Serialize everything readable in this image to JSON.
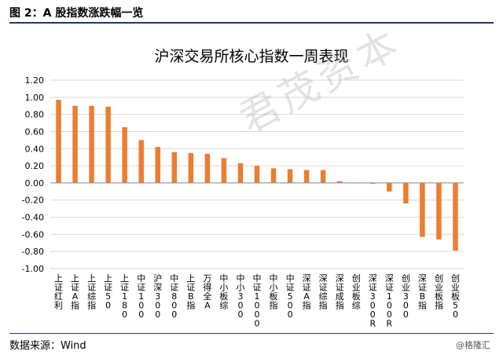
{
  "figure_header": "图 2：A 股指数涨跌幅一览",
  "source_note": "数据来源：Wind",
  "credit": "@格隆汇",
  "watermark": "君茂资本",
  "colors": {
    "bar": "#ed7d31",
    "grid": "#d9d9d9",
    "axis": "#8c8c8c",
    "rule": "#1f3864"
  },
  "chart_data": {
    "type": "bar",
    "title": "沪深交易所核心指数一周表现",
    "categories": [
      "上证红利",
      "上证A指",
      "上证综指",
      "上证50",
      "上证180",
      "中证100",
      "沪深300",
      "中证800",
      "上证B指",
      "万得全A",
      "中小板综",
      "中小300",
      "中证1000",
      "中小板指",
      "中证500",
      "深证A指",
      "深证综指",
      "深证成指",
      "创业板综",
      "深证300R",
      "深证100R",
      "创业300",
      "深证B指",
      "创业板指",
      "创业板50"
    ],
    "values": [
      0.97,
      0.9,
      0.9,
      0.89,
      0.65,
      0.5,
      0.42,
      0.36,
      0.35,
      0.34,
      0.29,
      0.23,
      0.2,
      0.17,
      0.16,
      0.15,
      0.15,
      0.02,
      0.0,
      -0.01,
      -0.1,
      -0.24,
      -0.63,
      -0.66,
      -0.79
    ],
    "ylim": [
      -1.0,
      1.2
    ],
    "yticks": [
      "1.20",
      "1.00",
      "0.80",
      "0.60",
      "0.40",
      "0.20",
      "0.00",
      "-0.20",
      "-0.40",
      "-0.60",
      "-0.80",
      "-1.00"
    ],
    "grid": true,
    "legend": "none"
  }
}
